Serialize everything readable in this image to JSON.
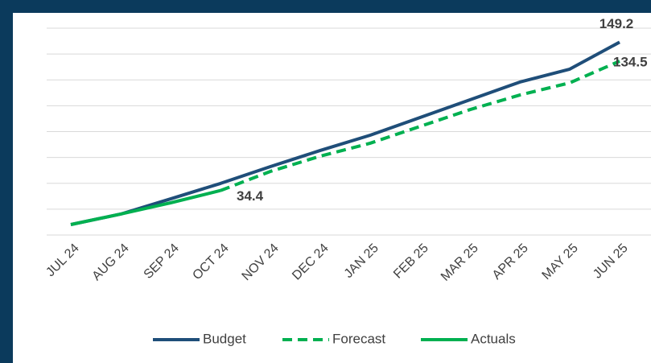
{
  "chart_data": {
    "type": "line",
    "categories": [
      "JUL 24",
      "AUG 24",
      "SEP 24",
      "OCT 24",
      "NOV 24",
      "DEC 24",
      "JAN 25",
      "FEB 25",
      "MAR 25",
      "APR 25",
      "MAY 25",
      "JUN 25"
    ],
    "series": [
      {
        "name": "Budget",
        "color": "#1f4e79",
        "dash": false,
        "label_index": 11,
        "values": [
          8.1,
          16.2,
          28,
          39.9,
          52.9,
          65.4,
          77.2,
          90.9,
          104.6,
          118.3,
          128.3,
          149.2
        ]
      },
      {
        "name": "Forecast",
        "color": "#00b050",
        "dash": true,
        "label_index": 11,
        "values": [
          null,
          null,
          null,
          34.4,
          49.2,
          61,
          71,
          84,
          97,
          108.3,
          117.7,
          134.5
        ]
      },
      {
        "name": "Actuals",
        "color": "#00b050",
        "dash": false,
        "label_index": 3,
        "values": [
          8.1,
          16.2,
          24.9,
          34.4,
          null,
          null,
          null,
          null,
          null,
          null,
          null,
          null
        ]
      }
    ],
    "ylim": [
      0,
      160
    ],
    "yticks": [
      0,
      20,
      40,
      60,
      80,
      100,
      120,
      140,
      160
    ],
    "grid": true,
    "legend": "bottom"
  }
}
